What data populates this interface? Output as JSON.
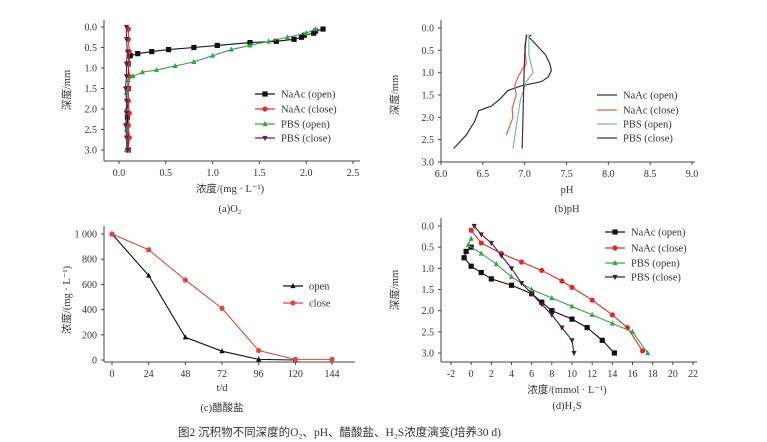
{
  "figure_caption": "图2 沉积物不同深度的O₂、pH、醋酸盐、H₂S浓度演变(培养30 d)",
  "chart_data": [
    {
      "id": "a",
      "type": "line",
      "caption": "(a)O₂",
      "xlabel": "浓度/(mg · L⁻¹)",
      "ylabel": "深度/mm",
      "xlim": [
        0,
        2.5
      ],
      "ylim": [
        0,
        3.0
      ],
      "y_reversed": true,
      "xticks": [
        "0.0",
        "0.5",
        "1.0",
        "1.5",
        "2.0",
        "2.5"
      ],
      "yticks": [
        "0.0",
        "0.5",
        "1.0",
        "1.5",
        "2.0",
        "2.5",
        "3.0"
      ],
      "legend_position": "right",
      "series": [
        {
          "name": "NaAc (open)",
          "color": "#111111",
          "marker": "square",
          "points": [
            [
              2.18,
              0.05
            ],
            [
              2.1,
              0.1
            ],
            [
              2.08,
              0.15
            ],
            [
              1.98,
              0.2
            ],
            [
              1.95,
              0.25
            ],
            [
              1.87,
              0.3
            ],
            [
              1.68,
              0.35
            ],
            [
              1.4,
              0.38
            ],
            [
              1.05,
              0.45
            ],
            [
              0.8,
              0.5
            ],
            [
              0.53,
              0.55
            ],
            [
              0.35,
              0.6
            ],
            [
              0.2,
              0.65
            ],
            [
              0.12,
              0.7
            ],
            [
              0.1,
              0.9
            ],
            [
              0.1,
              1.5
            ],
            [
              0.09,
              2.2
            ],
            [
              0.1,
              3.0
            ]
          ]
        },
        {
          "name": "NaAc (close)",
          "color": "#d9302c",
          "marker": "circle",
          "points": [
            [
              0.1,
              0.05
            ],
            [
              0.1,
              0.3
            ],
            [
              0.11,
              0.6
            ],
            [
              0.1,
              0.9
            ],
            [
              0.11,
              1.2
            ],
            [
              0.1,
              1.5
            ],
            [
              0.1,
              1.8
            ],
            [
              0.11,
              2.1
            ],
            [
              0.1,
              2.4
            ],
            [
              0.11,
              2.7
            ],
            [
              0.1,
              3.0
            ]
          ]
        },
        {
          "name": "PBS (open)",
          "color": "#3aa34a",
          "marker": "triangle",
          "points": [
            [
              2.1,
              0.05
            ],
            [
              2.0,
              0.15
            ],
            [
              1.8,
              0.25
            ],
            [
              1.6,
              0.35
            ],
            [
              1.4,
              0.45
            ],
            [
              1.2,
              0.55
            ],
            [
              1.0,
              0.7
            ],
            [
              0.8,
              0.85
            ],
            [
              0.6,
              0.95
            ],
            [
              0.4,
              1.05
            ],
            [
              0.25,
              1.1
            ],
            [
              0.15,
              1.2
            ],
            [
              0.1,
              1.3
            ],
            [
              0.08,
              1.6
            ],
            [
              0.08,
              2.0
            ],
            [
              0.08,
              2.5
            ],
            [
              0.08,
              3.0
            ]
          ]
        },
        {
          "name": "PBS (close)",
          "color": "#5b1f55",
          "marker": "triangle-down",
          "points": [
            [
              0.08,
              0.0
            ],
            [
              0.08,
              0.3
            ],
            [
              0.09,
              0.6
            ],
            [
              0.08,
              0.9
            ],
            [
              0.08,
              1.2
            ],
            [
              0.07,
              1.5
            ],
            [
              0.08,
              1.8
            ],
            [
              0.08,
              2.1
            ],
            [
              0.07,
              2.4
            ],
            [
              0.08,
              2.7
            ],
            [
              0.09,
              3.0
            ]
          ]
        }
      ]
    },
    {
      "id": "b",
      "type": "line",
      "caption": "(b)pH",
      "xlabel": "pH",
      "ylabel": "深度/mm",
      "xlim": [
        6.0,
        9.0
      ],
      "ylim": [
        0,
        3.0
      ],
      "y_reversed": true,
      "xticks": [
        "6.0",
        "6.5",
        "7.0",
        "7.5",
        "8.0",
        "8.5",
        "9.0"
      ],
      "yticks": [
        "0.0",
        "0.5",
        "1.0",
        "1.5",
        "2.0",
        "2.5",
        "3.0"
      ],
      "legend_position": "right",
      "series": [
        {
          "name": "NaAc (open)",
          "color": "#333333",
          "marker": "none",
          "points": [
            [
              7.08,
              0.15
            ],
            [
              7.05,
              0.2
            ],
            [
              7.15,
              0.4
            ],
            [
              7.25,
              0.6
            ],
            [
              7.3,
              0.8
            ],
            [
              7.32,
              0.95
            ],
            [
              7.28,
              1.1
            ],
            [
              7.2,
              1.2
            ],
            [
              6.95,
              1.3
            ],
            [
              6.8,
              1.4
            ],
            [
              6.7,
              1.6
            ],
            [
              6.6,
              1.75
            ],
            [
              6.45,
              1.85
            ],
            [
              6.4,
              2.1
            ],
            [
              6.3,
              2.4
            ],
            [
              6.15,
              2.7
            ]
          ]
        },
        {
          "name": "NaAc (close)",
          "color": "#e8603c",
          "marker": "none",
          "points": [
            [
              7.03,
              0.15
            ],
            [
              7.0,
              0.4
            ],
            [
              7.02,
              0.8
            ],
            [
              6.98,
              0.9
            ],
            [
              6.92,
              1.1
            ],
            [
              6.88,
              1.3
            ],
            [
              6.9,
              1.5
            ],
            [
              6.85,
              1.8
            ],
            [
              6.86,
              2.0
            ],
            [
              6.82,
              2.2
            ],
            [
              6.78,
              2.4
            ]
          ]
        },
        {
          "name": "PBS (open)",
          "color": "#6cc29b",
          "marker": "none",
          "points": [
            [
              7.05,
              0.15
            ],
            [
              7.05,
              0.6
            ],
            [
              7.1,
              1.0
            ],
            [
              7.02,
              1.2
            ],
            [
              6.95,
              1.6
            ],
            [
              6.9,
              2.2
            ],
            [
              6.86,
              2.7
            ]
          ]
        },
        {
          "name": "PBS (close)",
          "color": "#4a2a40",
          "marker": "none",
          "points": [
            [
              7.02,
              0.15
            ],
            [
              7.0,
              0.6
            ],
            [
              6.99,
              1.2
            ],
            [
              6.98,
              2.0
            ],
            [
              6.97,
              2.7
            ]
          ]
        }
      ]
    },
    {
      "id": "c",
      "type": "line",
      "caption": "(c)醋酸盐",
      "xlabel": "t/d",
      "ylabel": "浓度/(mg · L⁻¹)",
      "xlim": [
        0,
        144
      ],
      "ylim": [
        0,
        1000
      ],
      "y_reversed": false,
      "xticks": [
        "0",
        "24",
        "48",
        "72",
        "96",
        "120",
        "144"
      ],
      "yticks": [
        "0",
        "200",
        "400",
        "600",
        "800",
        "1 000"
      ],
      "legend_position": "right",
      "series": [
        {
          "name": "open",
          "color": "#111111",
          "marker": "triangle",
          "points": [
            [
              0,
              1000
            ],
            [
              24,
              670
            ],
            [
              48,
              180
            ],
            [
              72,
              70
            ],
            [
              96,
              5
            ],
            [
              120,
              0
            ]
          ]
        },
        {
          "name": "close",
          "color": "#e0443a",
          "marker": "circle",
          "points": [
            [
              0,
              1000
            ],
            [
              24,
              875
            ],
            [
              48,
              635
            ],
            [
              72,
              410
            ],
            [
              96,
              75
            ],
            [
              120,
              5
            ],
            [
              144,
              5
            ]
          ]
        }
      ]
    },
    {
      "id": "d",
      "type": "line",
      "caption": "(d)H₂S",
      "xlabel": "浓度/(mmol · L⁻¹)",
      "ylabel": "深度/mm",
      "xlim": [
        -2,
        22
      ],
      "ylim": [
        0,
        3.0
      ],
      "y_reversed": true,
      "xticks": [
        "-2",
        "0",
        "2",
        "4",
        "6",
        "8",
        "10",
        "12",
        "14",
        "16",
        "18",
        "20",
        "22"
      ],
      "yticks": [
        "0.0",
        "0.5",
        "1.0",
        "1.5",
        "2.0",
        "2.5",
        "3.0"
      ],
      "legend_position": "top-right",
      "series": [
        {
          "name": "NaAc (open)",
          "color": "#111111",
          "marker": "square",
          "points": [
            [
              0,
              0.5
            ],
            [
              -0.5,
              0.6
            ],
            [
              -0.7,
              0.75
            ],
            [
              0,
              0.95
            ],
            [
              1,
              1.1
            ],
            [
              2,
              1.25
            ],
            [
              4,
              1.4
            ],
            [
              6,
              1.6
            ],
            [
              7,
              1.8
            ],
            [
              8,
              2.0
            ],
            [
              10,
              2.2
            ],
            [
              11.5,
              2.4
            ],
            [
              13,
              2.7
            ],
            [
              14.2,
              3.0
            ]
          ]
        },
        {
          "name": "NaAc (close)",
          "color": "#e02a22",
          "marker": "circle",
          "points": [
            [
              0,
              0.1
            ],
            [
              1,
              0.4
            ],
            [
              3,
              0.65
            ],
            [
              5,
              0.85
            ],
            [
              7,
              1.05
            ],
            [
              9,
              1.3
            ],
            [
              10,
              1.45
            ],
            [
              12,
              1.75
            ],
            [
              14,
              2.1
            ],
            [
              15.5,
              2.4
            ],
            [
              17,
              2.95
            ]
          ]
        },
        {
          "name": "PBS (open)",
          "color": "#3aa34a",
          "marker": "triangle",
          "points": [
            [
              0,
              0.3
            ],
            [
              -0.3,
              0.45
            ],
            [
              1,
              0.65
            ],
            [
              2.5,
              0.9
            ],
            [
              4,
              1.2
            ],
            [
              6,
              1.5
            ],
            [
              8,
              1.7
            ],
            [
              10,
              1.9
            ],
            [
              12,
              2.1
            ],
            [
              14,
              2.3
            ],
            [
              16,
              2.5
            ],
            [
              17.5,
              3.0
            ]
          ]
        },
        {
          "name": "PBS (close)",
          "color": "#4e1848",
          "marker": "triangle-down",
          "points": [
            [
              0.3,
              0.0
            ],
            [
              1,
              0.2
            ],
            [
              2,
              0.4
            ],
            [
              3,
              0.7
            ],
            [
              4,
              1.0
            ],
            [
              5,
              1.35
            ],
            [
              6,
              1.6
            ],
            [
              7,
              1.85
            ],
            [
              8,
              2.1
            ],
            [
              9,
              2.4
            ],
            [
              10,
              2.7
            ],
            [
              10.2,
              3.0
            ]
          ]
        }
      ]
    }
  ]
}
